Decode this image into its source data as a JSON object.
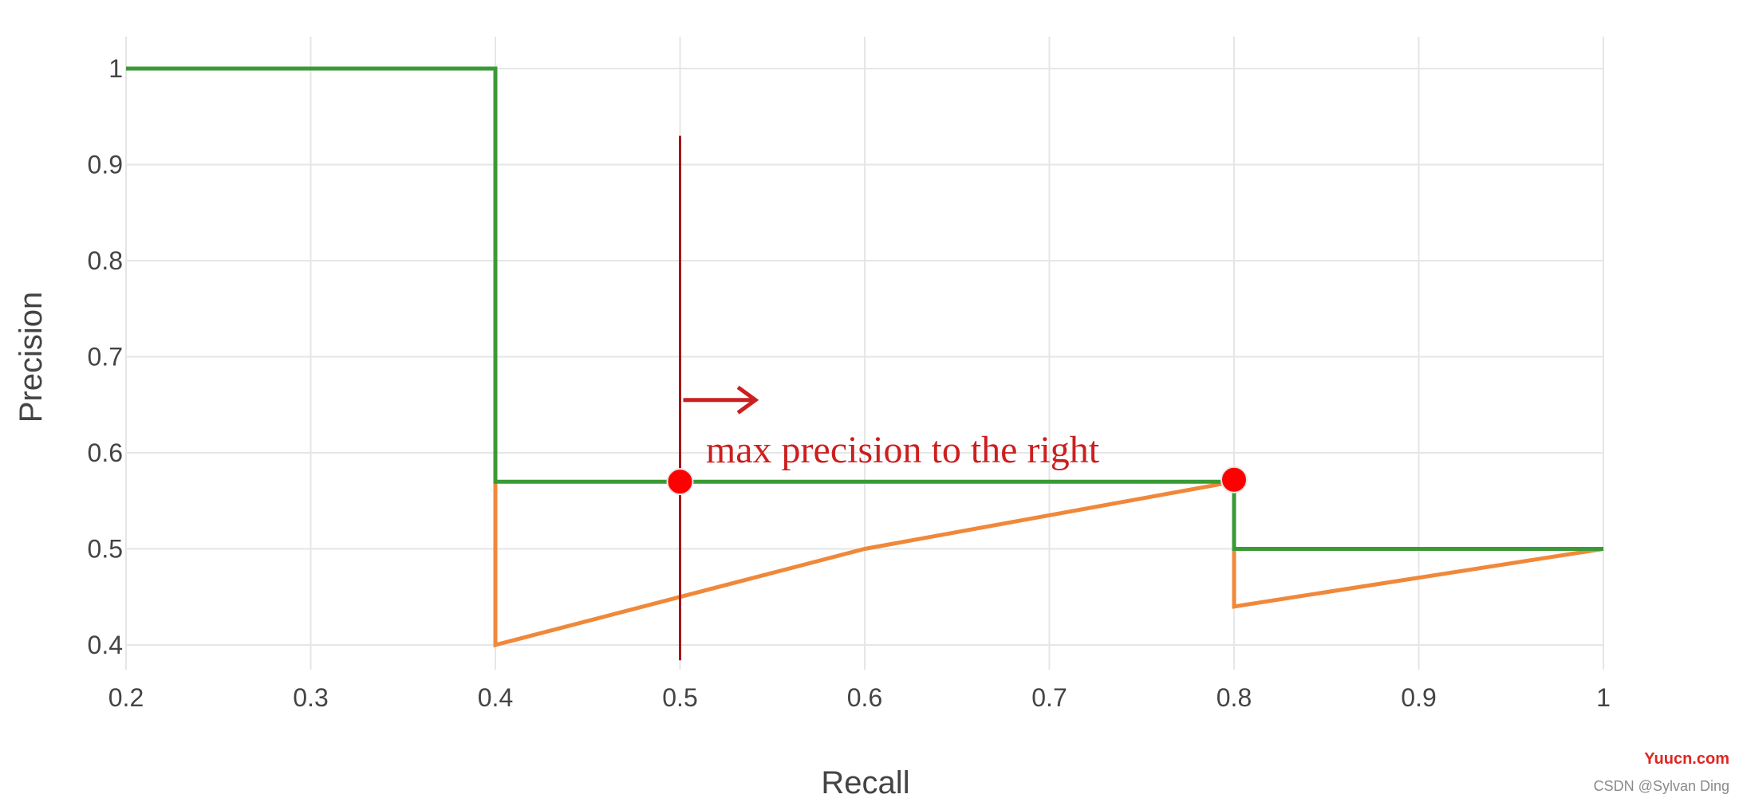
{
  "chart_data": {
    "type": "line",
    "title": "",
    "xlabel": "Recall",
    "ylabel": "Precision",
    "xlim": [
      0.2,
      1.0
    ],
    "ylim": [
      0.4,
      1.0
    ],
    "x_ticks": [
      0.2,
      0.3,
      0.4,
      0.5,
      0.6,
      0.7,
      0.8,
      0.9,
      1.0
    ],
    "x_tick_labels": [
      "0.2",
      "0.3",
      "0.4",
      "0.5",
      "0.6",
      "0.7",
      "0.8",
      "0.9",
      "1"
    ],
    "y_ticks": [
      0.4,
      0.5,
      0.6,
      0.7,
      0.8,
      0.9,
      1.0
    ],
    "y_tick_labels": [
      "0.4",
      "0.5",
      "0.6",
      "0.7",
      "0.8",
      "0.9",
      "1"
    ],
    "grid": true,
    "legend": "none",
    "series": [
      {
        "color": "#3a9a35",
        "points": [
          [
            0.2,
            1.0
          ],
          [
            0.4,
            1.0
          ],
          [
            0.4,
            0.57
          ],
          [
            0.8,
            0.57
          ],
          [
            0.8,
            0.5
          ],
          [
            1.0,
            0.5
          ]
        ]
      },
      {
        "color": "#f0883a",
        "points": [
          [
            0.4,
            0.57
          ],
          [
            0.4,
            0.4
          ],
          [
            0.6,
            0.5
          ],
          [
            0.8,
            0.57
          ],
          [
            0.8,
            0.44
          ],
          [
            1.0,
            0.5
          ]
        ]
      }
    ],
    "annotations": {
      "vertical_line": {
        "x": 0.5,
        "y_from": 0.384,
        "y_to": 0.93,
        "color": "#a4161a"
      },
      "arrow": {
        "x_from": 0.5,
        "x_to": 0.54,
        "y": 0.655,
        "color": "#cc1f1f"
      },
      "text": {
        "label": "max precision to the right",
        "x": 0.514,
        "y": 0.6,
        "color": "#cc1f1f"
      },
      "markers": [
        {
          "x": 0.5,
          "y": 0.57,
          "color": "#ff0000"
        },
        {
          "x": 0.8,
          "y": 0.572,
          "color": "#ff0000"
        }
      ]
    }
  },
  "watermark": {
    "site": "Yuucn.com",
    "credit": "CSDN @Sylvan Ding"
  }
}
